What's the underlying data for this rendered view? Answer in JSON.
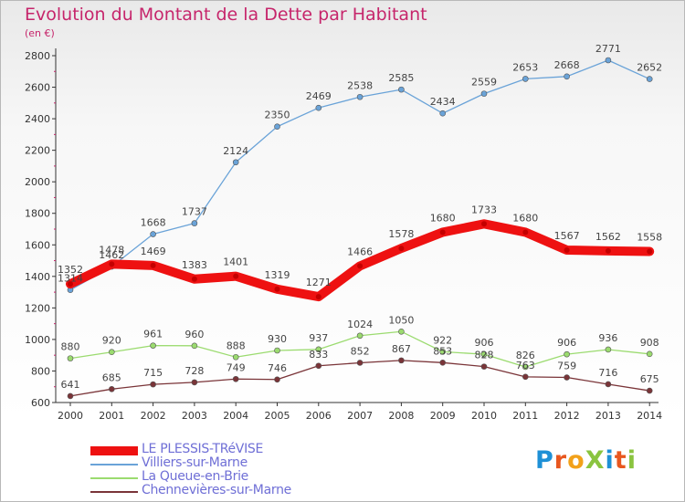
{
  "header": {
    "title": "Evolution du Montant de la Dette par Habitant",
    "subtitle": "(en €)"
  },
  "logo": {
    "text": "ProXiti",
    "colors": [
      "#1e90d6",
      "#e8571f",
      "#f2a11a",
      "#8ac43f",
      "#1e90d6",
      "#e8571f",
      "#8ac43f"
    ]
  },
  "chart_data": {
    "type": "line",
    "title": "Evolution du Montant de la Dette par Habitant",
    "ylabel": "(en €)",
    "x": [
      "2000",
      "2001",
      "2002",
      "2003",
      "2004",
      "2005",
      "2006",
      "2007",
      "2008",
      "2009",
      "2010",
      "2011",
      "2012",
      "2013",
      "2014"
    ],
    "ylim": [
      600,
      2800
    ],
    "yticks": [
      600,
      800,
      1000,
      1200,
      1400,
      1600,
      1800,
      2000,
      2200,
      2400,
      2600,
      2800
    ],
    "grid": false,
    "legend_position": "bottom-left",
    "series": [
      {
        "name": "LE PLESSIS-TRéVISE",
        "color": "#ee1111",
        "values": [
          1352,
          1478,
          1469,
          1383,
          1401,
          1319,
          1271,
          1466,
          1578,
          1680,
          1733,
          1680,
          1567,
          1562,
          1558
        ]
      },
      {
        "name": "Villiers-sur-Marne",
        "color": "#6aa3d8",
        "values": [
          1314,
          1462,
          1668,
          1737,
          2124,
          2350,
          2469,
          2538,
          2585,
          2434,
          2559,
          2653,
          2668,
          2771,
          2652
        ]
      },
      {
        "name": "La Queue-en-Brie",
        "color": "#9bdb6f",
        "values": [
          880,
          920,
          961,
          960,
          888,
          930,
          937,
          1024,
          1050,
          922,
          906,
          826,
          906,
          936,
          908
        ]
      },
      {
        "name": "Chennevières-sur-Marne",
        "color": "#7a3438",
        "values": [
          641,
          685,
          715,
          728,
          749,
          746,
          833,
          852,
          867,
          853,
          828,
          763,
          759,
          716,
          675
        ]
      }
    ]
  }
}
